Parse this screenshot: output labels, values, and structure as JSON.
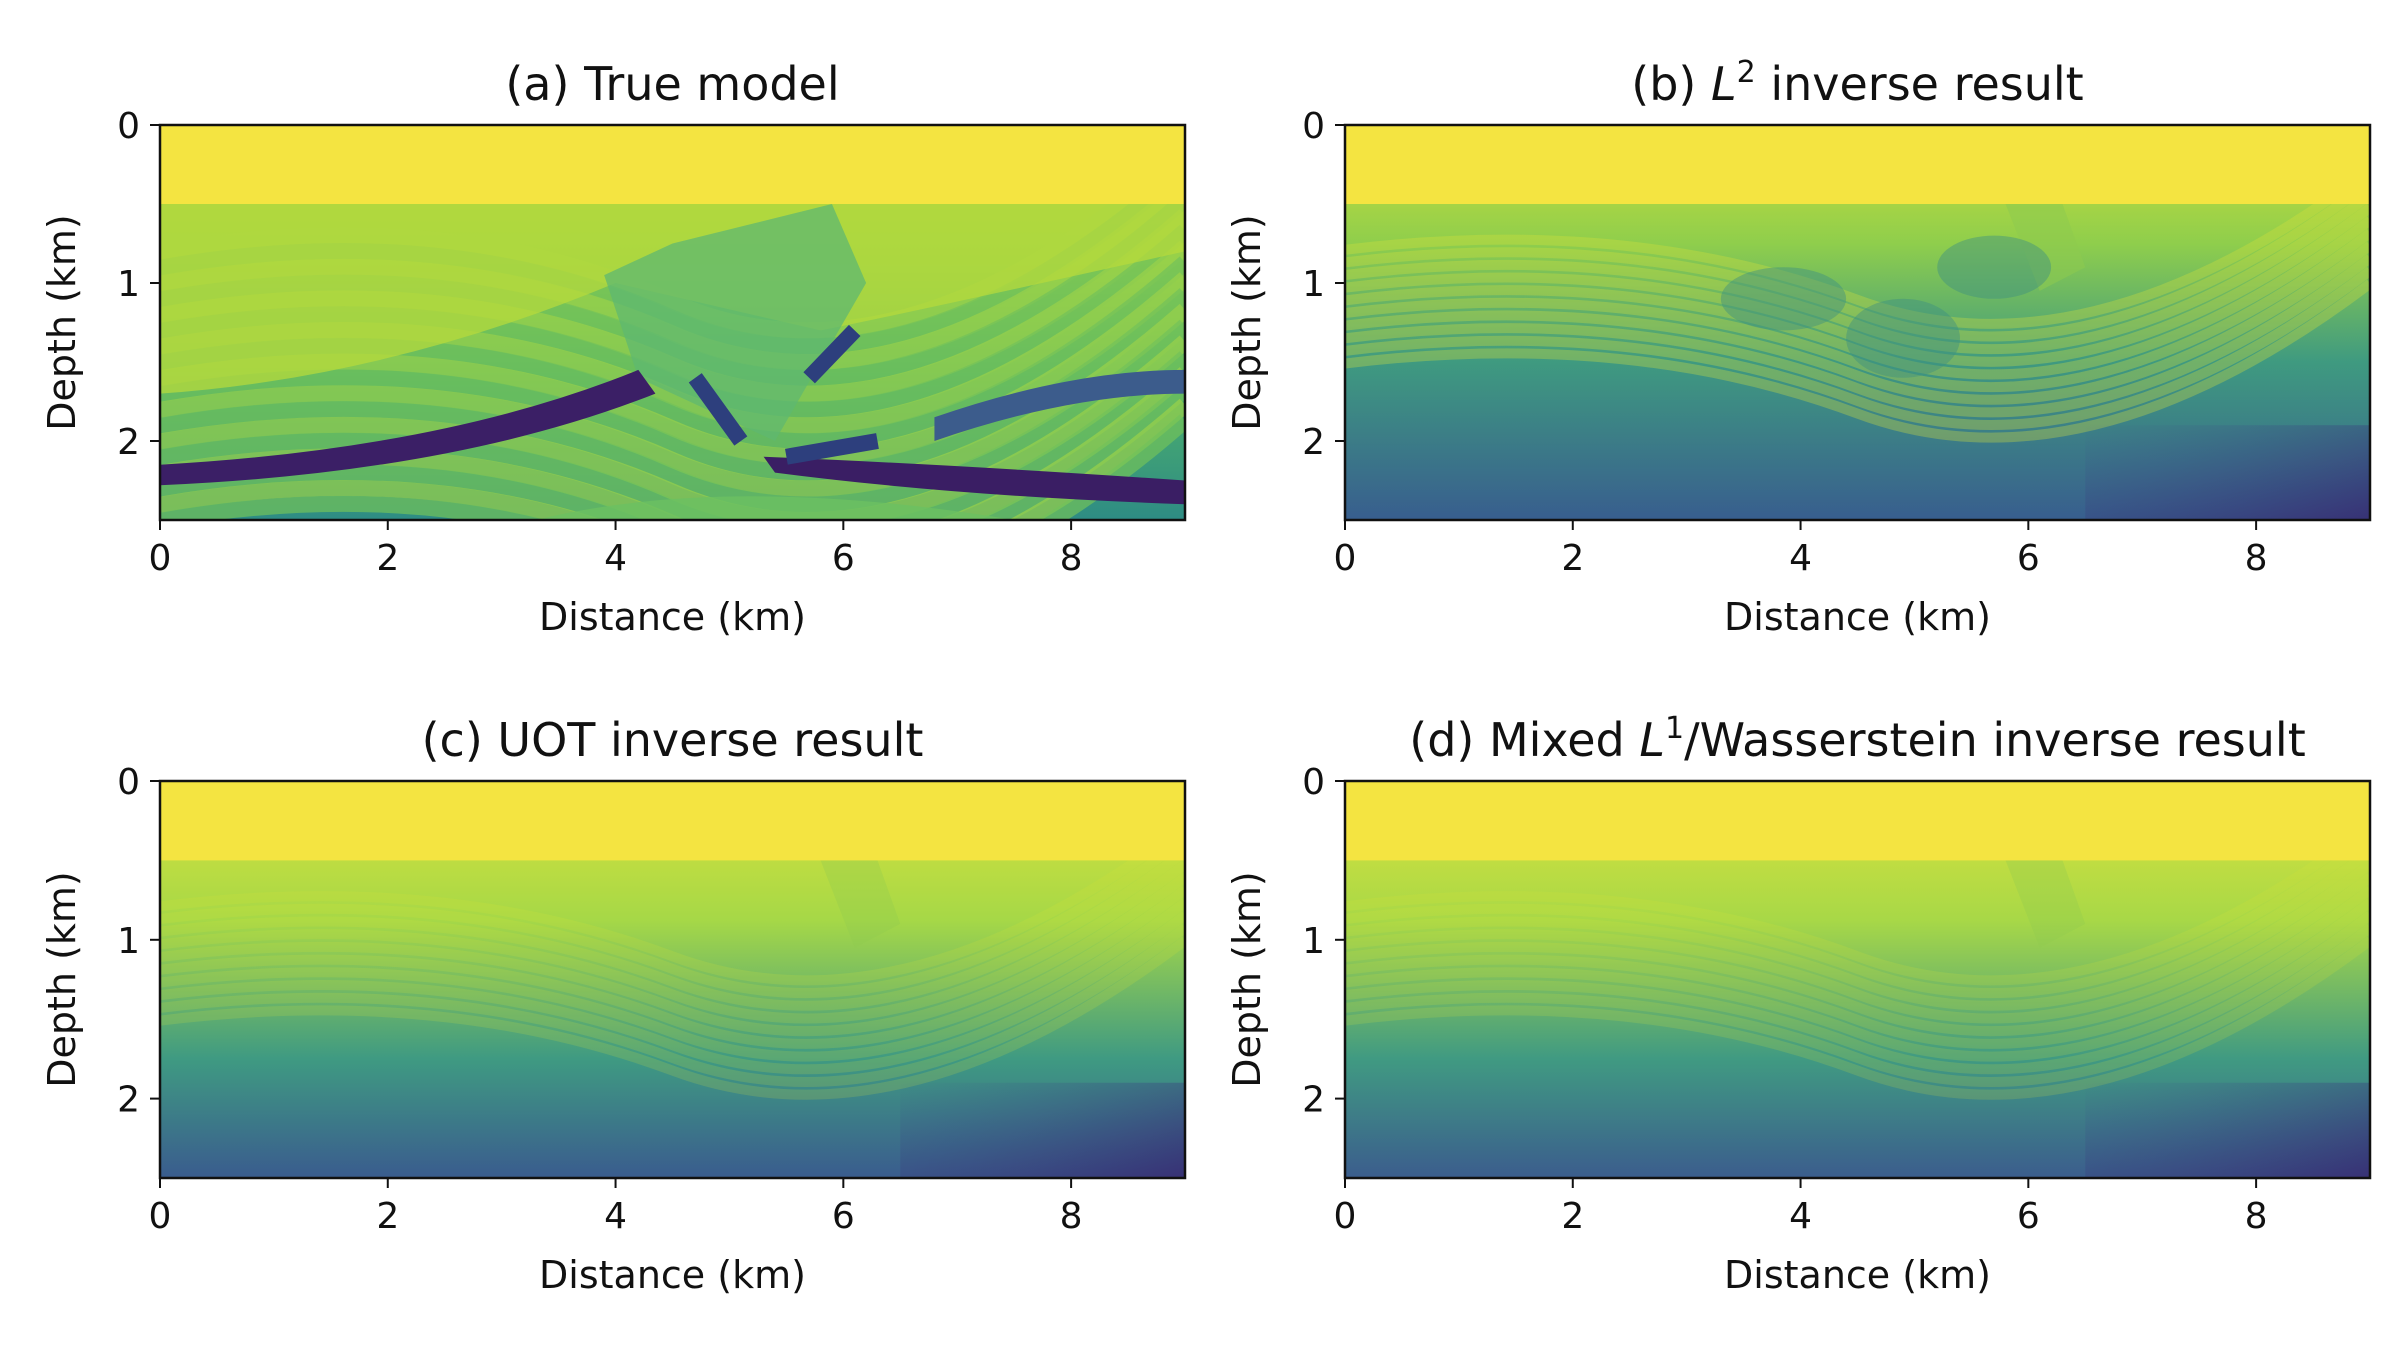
{
  "figure": {
    "panels": [
      {
        "title_prefix": "(a) True model",
        "title_sup": "",
        "title_suffix": ""
      },
      {
        "title_prefix": "(b) ",
        "title_sym": "L",
        "title_sup": "2",
        "title_suffix": " inverse result"
      },
      {
        "title_prefix": "(c) UOT inverse result",
        "title_sup": "",
        "title_suffix": ""
      },
      {
        "title_prefix": "(d) Mixed ",
        "title_sym": "L",
        "title_sup": "1",
        "title_suffix": "/Wasserstein inverse result"
      }
    ]
  },
  "chart_data": [
    {
      "type": "heatmap",
      "title": "(a) True model",
      "xlabel": "Distance (km)",
      "ylabel": "Depth (km)",
      "xlim": [
        0,
        9
      ],
      "ylim": [
        2.5,
        0
      ],
      "xticks": [
        0,
        2,
        4,
        6,
        8
      ],
      "yticks": [
        0,
        1,
        2
      ],
      "colormap": "viridis",
      "water_layer_depth_km": 0.5,
      "description_values": {
        "water": 1.0,
        "sediment_range": [
          0.35,
          0.85
        ],
        "deep_layer": 0.05
      }
    },
    {
      "type": "heatmap",
      "title": "(b) L2 inverse result",
      "xlabel": "Distance (km)",
      "ylabel": "Depth (km)",
      "xlim": [
        0,
        9
      ],
      "ylim": [
        2.5,
        0
      ],
      "xticks": [
        0,
        2,
        4,
        6,
        8
      ],
      "yticks": [
        0,
        1,
        2
      ],
      "colormap": "viridis"
    },
    {
      "type": "heatmap",
      "title": "(c) UOT inverse result",
      "xlabel": "Distance (km)",
      "ylabel": "Depth (km)",
      "xlim": [
        0,
        9
      ],
      "ylim": [
        2.5,
        0
      ],
      "xticks": [
        0,
        2,
        4,
        6,
        8
      ],
      "yticks": [
        0,
        1,
        2
      ],
      "colormap": "viridis"
    },
    {
      "type": "heatmap",
      "title": "(d) Mixed L1/Wasserstein inverse result",
      "xlabel": "Distance (km)",
      "ylabel": "Depth (km)",
      "xlim": [
        0,
        9
      ],
      "ylim": [
        2.5,
        0
      ],
      "xticks": [
        0,
        2,
        4,
        6,
        8
      ],
      "yticks": [
        0,
        1,
        2
      ],
      "colormap": "viridis"
    }
  ]
}
